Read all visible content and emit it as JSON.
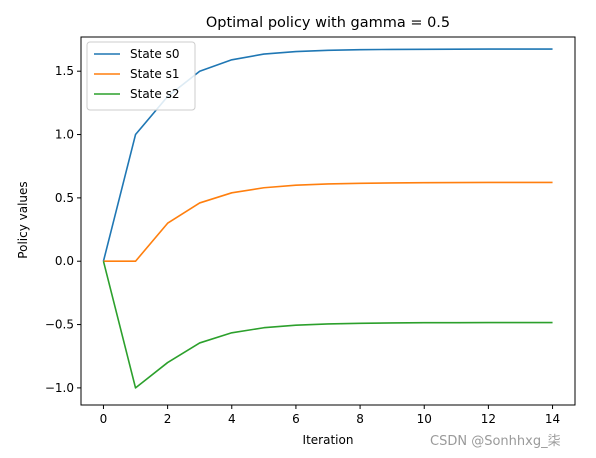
{
  "chart_data": {
    "type": "line",
    "title": "Optimal policy with gamma = 0.5",
    "xlabel": "Iteration",
    "ylabel": "Policy values",
    "xlim": [
      -0.7,
      14.7
    ],
    "ylim": [
      -1.135,
      1.77
    ],
    "xticks": [
      0,
      2,
      4,
      6,
      8,
      10,
      12,
      14
    ],
    "yticks": [
      -1.0,
      -0.5,
      0.0,
      0.5,
      1.0,
      1.5
    ],
    "ytick_labels": [
      "−1.0",
      "−0.5",
      "0.0",
      "0.5",
      "1.0",
      "1.5"
    ],
    "grid": false,
    "legend_position": "top-left",
    "x": [
      0,
      1,
      2,
      3,
      4,
      5,
      6,
      7,
      8,
      9,
      10,
      11,
      12,
      13,
      14
    ],
    "series": [
      {
        "name": "State s0",
        "color": "#1f77b4",
        "values": [
          0.0,
          1.0,
          1.3,
          1.5,
          1.59,
          1.635,
          1.655,
          1.665,
          1.67,
          1.672,
          1.673,
          1.674,
          1.675,
          1.675,
          1.675
        ]
      },
      {
        "name": "State s1",
        "color": "#ff7f0e",
        "values": [
          0.0,
          0.0,
          0.3,
          0.46,
          0.54,
          0.58,
          0.6,
          0.61,
          0.615,
          0.618,
          0.62,
          0.621,
          0.622,
          0.622,
          0.622
        ]
      },
      {
        "name": "State s2",
        "color": "#2ca02c",
        "values": [
          0.0,
          -1.0,
          -0.8,
          -0.645,
          -0.565,
          -0.525,
          -0.505,
          -0.495,
          -0.49,
          -0.487,
          -0.485,
          -0.485,
          -0.484,
          -0.484,
          -0.484
        ]
      }
    ]
  },
  "watermark": "CSDN @Sonhhxg_柒"
}
